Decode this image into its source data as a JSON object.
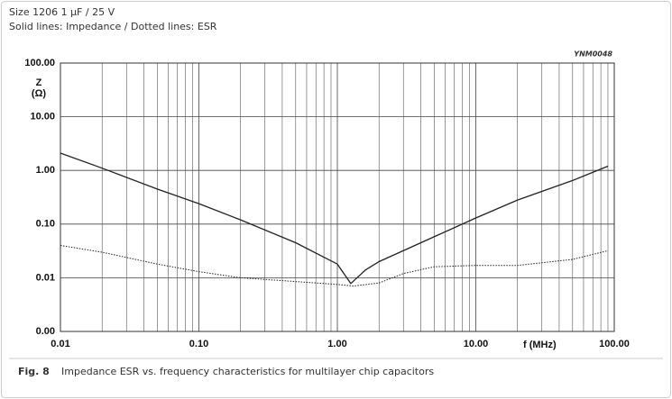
{
  "chart_data": {
    "type": "line",
    "subtitle_lines": [
      "Size 1206 1 µF / 25 V",
      "Solid lines: Impedance / Dotted lines: ESR"
    ],
    "code": "YNM0048",
    "ylabel": "Z",
    "yunit": "(Ω)",
    "xlabel": "f  (MHz)",
    "caption_label": "Fig. 8",
    "caption": "Impedance ESR vs. frequency characteristics for multilayer chip capacitors",
    "xlog": true,
    "ylog": true,
    "grid": true,
    "xminor_grid": true,
    "xlim": [
      0.01,
      100
    ],
    "ylim": [
      0.001,
      100
    ],
    "xticks": [
      {
        "value": 0.01,
        "label": "0.01"
      },
      {
        "value": 0.1,
        "label": "0.10"
      },
      {
        "value": 1,
        "label": "1.00"
      },
      {
        "value": 10,
        "label": "10.00"
      },
      {
        "value": 100,
        "label": "100.00"
      }
    ],
    "yticks": [
      {
        "value": 0.001,
        "label": "0.00"
      },
      {
        "value": 0.01,
        "label": "0.01"
      },
      {
        "value": 0.1,
        "label": "0.10"
      },
      {
        "value": 1,
        "label": "1.00"
      },
      {
        "value": 10,
        "label": "10.00"
      },
      {
        "value": 100,
        "label": "100.00"
      }
    ],
    "series": [
      {
        "color": "#222222",
        "style": "solid",
        "x": [
          0.01,
          0.02,
          0.05,
          0.1,
          0.2,
          0.5,
          1,
          1.25,
          1.6,
          2,
          5,
          10,
          20,
          50,
          90
        ],
        "values": [
          2.1,
          1.1,
          0.45,
          0.24,
          0.12,
          0.045,
          0.018,
          0.0078,
          0.014,
          0.02,
          0.058,
          0.13,
          0.28,
          0.65,
          1.2
        ]
      },
      {
        "color": "#222222",
        "style": "dotted",
        "x": [
          0.01,
          0.02,
          0.05,
          0.1,
          0.2,
          0.5,
          1,
          1.3,
          2,
          3,
          5,
          10,
          20,
          50,
          90
        ],
        "values": [
          0.04,
          0.03,
          0.018,
          0.013,
          0.01,
          0.0085,
          0.0075,
          0.007,
          0.008,
          0.012,
          0.016,
          0.017,
          0.017,
          0.022,
          0.032
        ]
      }
    ]
  }
}
